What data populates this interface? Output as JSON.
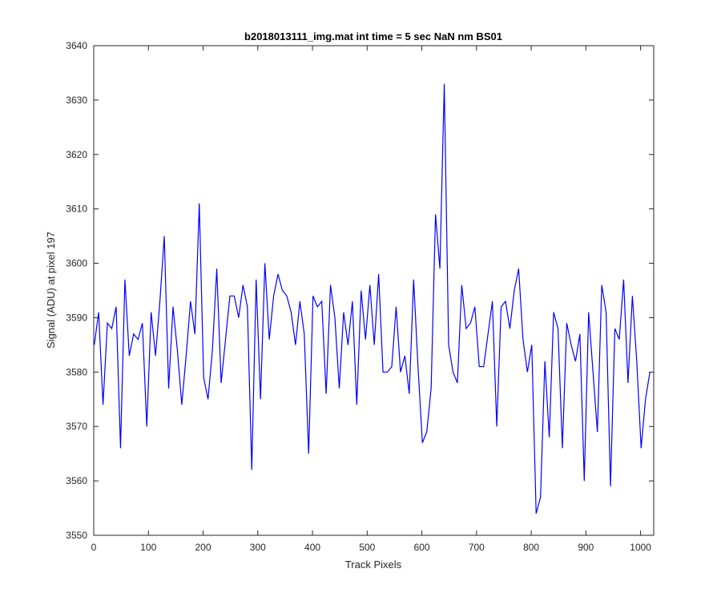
{
  "chart_data": {
    "type": "line",
    "title": "b2018013111_img.mat int time = 5 sec  NaN nm BS01",
    "xlabel": "Track Pixels",
    "ylabel": "Signal (ADU) at pixel 197",
    "xlim": [
      0,
      1024
    ],
    "ylim": [
      3550,
      3640
    ],
    "xticks": [
      0,
      100,
      200,
      300,
      400,
      500,
      600,
      700,
      800,
      900,
      1000
    ],
    "yticks": [
      3550,
      3560,
      3570,
      3580,
      3590,
      3600,
      3610,
      3620,
      3630,
      3640
    ],
    "grid": false,
    "colors": {
      "series": "#0000ff",
      "axes": "#262626",
      "background": "#ffffff"
    },
    "series": [
      {
        "x_start": 1,
        "x_step": 8,
        "values": [
          3585,
          3591,
          3574,
          3589,
          3588,
          3592,
          3566,
          3597,
          3583,
          3587,
          3586,
          3589,
          3570,
          3591,
          3583,
          3593,
          3605,
          3577,
          3592,
          3584,
          3574,
          3583,
          3593,
          3587,
          3611,
          3579,
          3575,
          3584,
          3599,
          3578,
          3586,
          3594,
          3594,
          3590,
          3596,
          3592,
          3562,
          3597,
          3575,
          3600,
          3586,
          3594,
          3598,
          3595,
          3594,
          3591,
          3585,
          3593,
          3587,
          3565,
          3594,
          3592,
          3593,
          3576,
          3596,
          3590,
          3577,
          3591,
          3585,
          3593,
          3574,
          3595,
          3586,
          3596,
          3585,
          3598,
          3580,
          3580,
          3581,
          3592,
          3580,
          3583,
          3576,
          3597,
          3581,
          3567,
          3569,
          3577,
          3609,
          3599,
          3633,
          3585,
          3580,
          3578,
          3596,
          3588,
          3589,
          3592,
          3581,
          3581,
          3587,
          3593,
          3570,
          3592,
          3593,
          3588,
          3595,
          3599,
          3586,
          3580,
          3585,
          3554,
          3557,
          3582,
          3568,
          3591,
          3588,
          3566,
          3589,
          3585,
          3582,
          3587,
          3560,
          3591,
          3580,
          3569,
          3596,
          3591,
          3559,
          3588,
          3586,
          3597,
          3578,
          3594,
          3582,
          3566,
          3575,
          3580
        ]
      }
    ]
  }
}
